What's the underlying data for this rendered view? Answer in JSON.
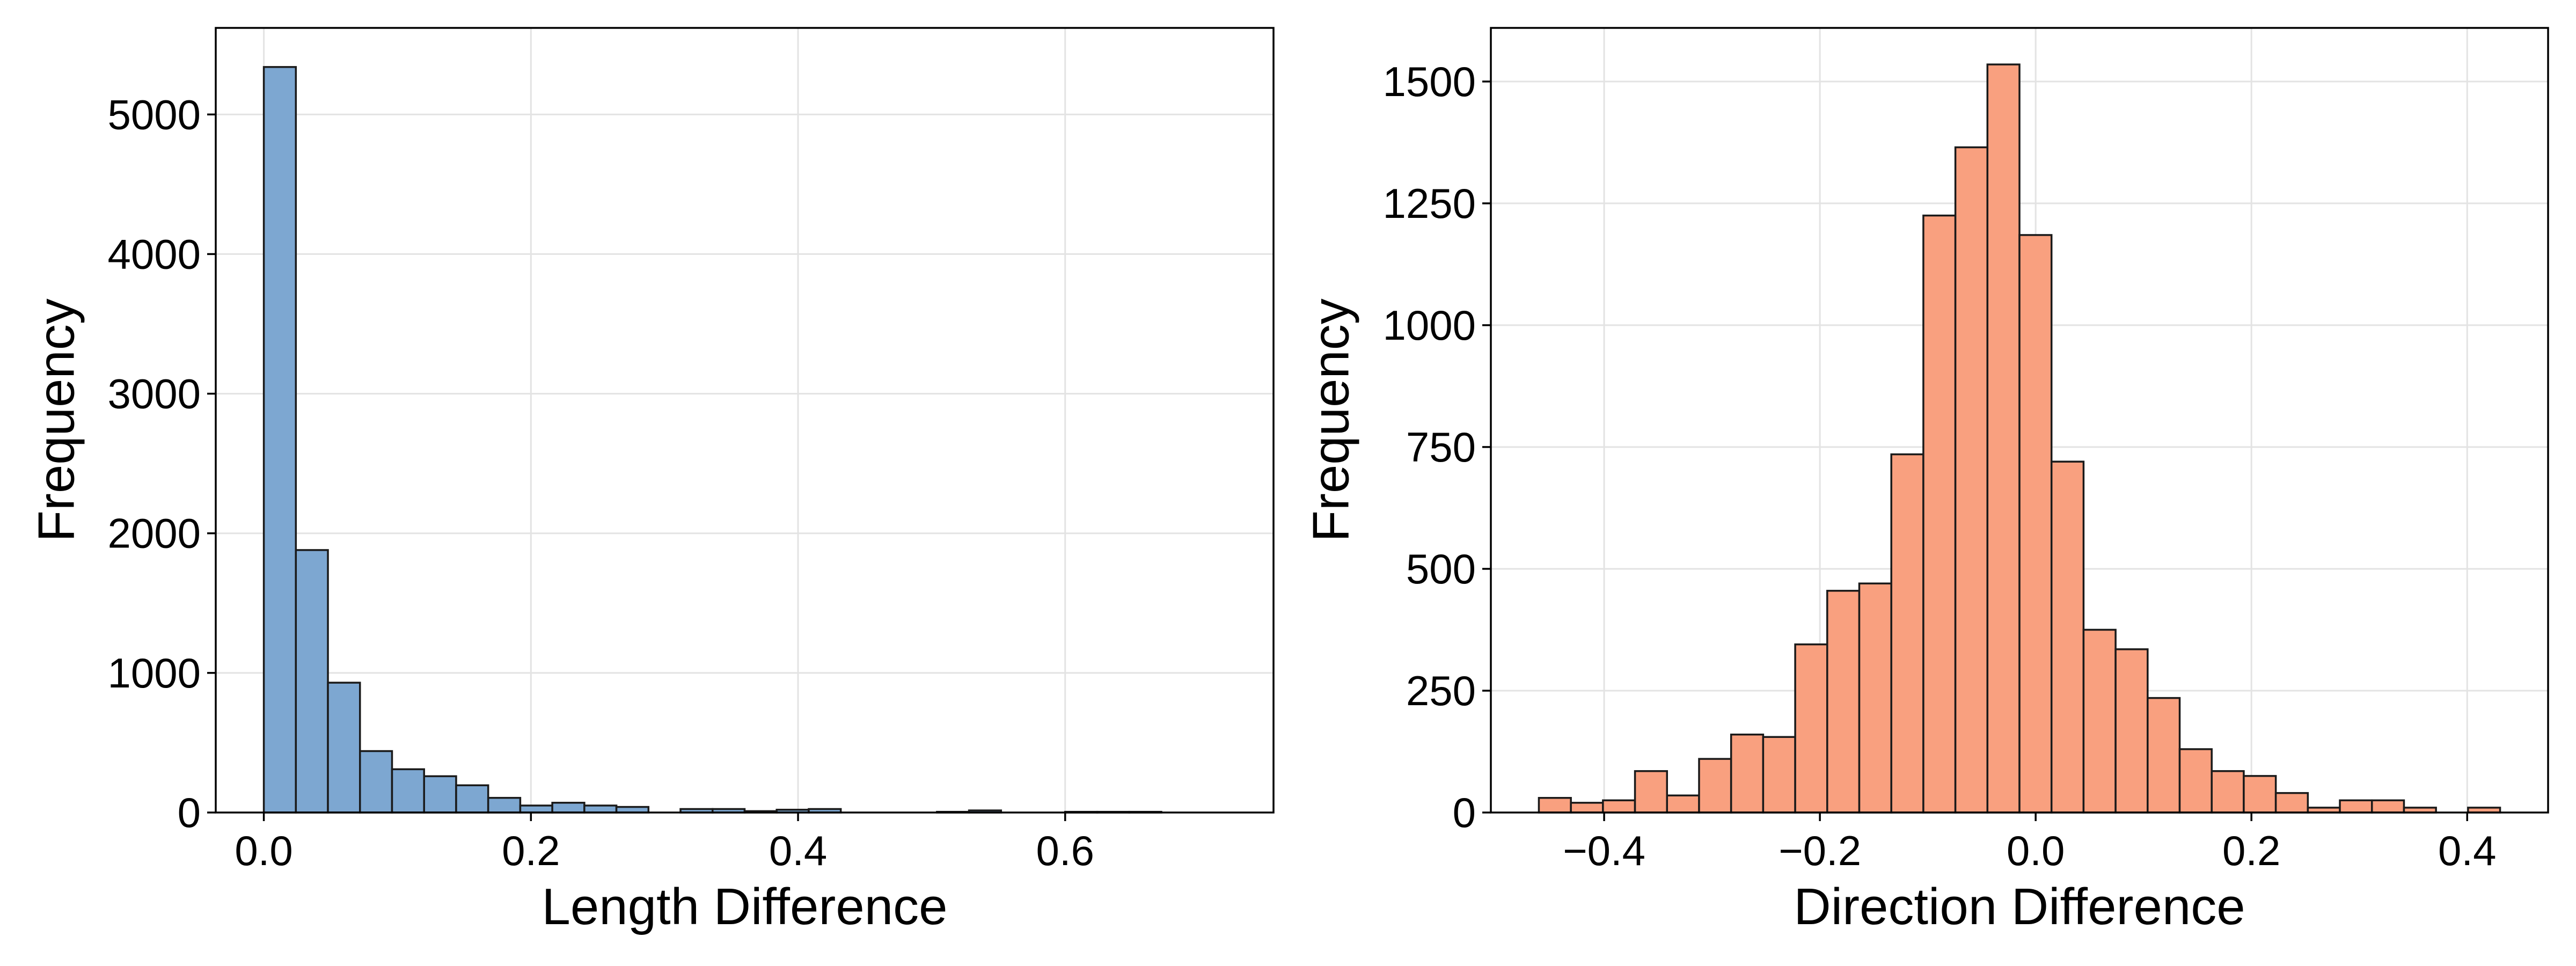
{
  "chart_data": [
    {
      "type": "bar",
      "xlabel": "Length Difference",
      "ylabel": "Frequency",
      "xlim": [
        -0.036,
        0.756
      ],
      "ylim": [
        0,
        5620
      ],
      "xticks": [
        0.0,
        0.2,
        0.4,
        0.6
      ],
      "xtick_labels": [
        "0.0",
        "0.2",
        "0.4",
        "0.6"
      ],
      "yticks": [
        0,
        1000,
        2000,
        3000,
        4000,
        5000
      ],
      "ytick_labels": [
        "0",
        "1000",
        "2000",
        "3000",
        "4000",
        "5000"
      ],
      "grid": true,
      "bar_color": "#7da7d1",
      "edge_color": "#1a1a1a",
      "bin_width": 0.024,
      "bin_edges_start": 0.0,
      "values": [
        5340,
        1880,
        930,
        440,
        310,
        260,
        195,
        105,
        50,
        70,
        50,
        40,
        0,
        25,
        25,
        10,
        20,
        25,
        0,
        0,
        0,
        5,
        15,
        0,
        0,
        5,
        5,
        5,
        0,
        0
      ]
    },
    {
      "type": "bar",
      "xlabel": "Direction Difference",
      "ylabel": "Frequency",
      "xlim": [
        -0.505,
        0.475
      ],
      "ylim": [
        0,
        1610
      ],
      "xticks": [
        -0.4,
        -0.2,
        0.0,
        0.2,
        0.4
      ],
      "xtick_labels": [
        "−0.4",
        "−0.2",
        "0.0",
        "0.2",
        "0.4"
      ],
      "yticks": [
        0,
        250,
        500,
        750,
        1000,
        1250,
        1500
      ],
      "ytick_labels": [
        "0",
        "250",
        "500",
        "750",
        "1000",
        "1250",
        "1500"
      ],
      "grid": true,
      "bar_color": "#f9a07f",
      "edge_color": "#1a1a1a",
      "bin_width": 0.0297,
      "bin_edges_start": -0.4605,
      "values": [
        30,
        20,
        25,
        85,
        35,
        110,
        160,
        155,
        345,
        455,
        470,
        735,
        1225,
        1365,
        1535,
        1185,
        720,
        375,
        335,
        235,
        130,
        85,
        75,
        40,
        10,
        25,
        25,
        10,
        0,
        10
      ]
    }
  ]
}
